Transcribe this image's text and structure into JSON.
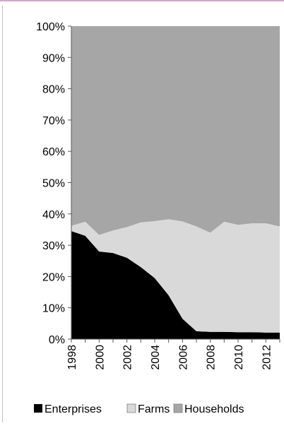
{
  "chart_data": {
    "type": "area",
    "stacked": true,
    "normalized": true,
    "x": [
      1998,
      1999,
      2000,
      2001,
      2002,
      2003,
      2004,
      2005,
      2006,
      2007,
      2008,
      2009,
      2010,
      2011,
      2012,
      2013
    ],
    "x_tick_labels": [
      "1998",
      "2000",
      "2002",
      "2004",
      "2006",
      "2008",
      "2010",
      "2012"
    ],
    "y_tick_labels": [
      "0%",
      "10%",
      "20%",
      "30%",
      "40%",
      "50%",
      "60%",
      "70%",
      "80%",
      "90%",
      "100%"
    ],
    "ylim": [
      0,
      100
    ],
    "series": [
      {
        "name": "Enterprises",
        "color": "#000000",
        "values": [
          34.5,
          33,
          28,
          27.5,
          26,
          23,
          19.5,
          14,
          6.5,
          2.5,
          2.3,
          2.3,
          2.2,
          2.2,
          2.1,
          2.1
        ]
      },
      {
        "name": "Farms",
        "color": "#d9d9d9",
        "values": [
          1.7,
          4.5,
          5.3,
          7.2,
          9.8,
          14.3,
          18.2,
          24.3,
          31.1,
          33.5,
          31.7,
          35.2,
          34.3,
          34.8,
          34.9,
          33.9
        ]
      },
      {
        "name": "Households",
        "color": "#a6a6a6",
        "values": [
          63.8,
          62.5,
          66.7,
          65.3,
          64.2,
          62.7,
          62.3,
          61.7,
          62.4,
          64,
          66,
          62.5,
          63.5,
          63,
          63,
          64
        ]
      }
    ],
    "legend_position": "bottom",
    "grid": false
  }
}
